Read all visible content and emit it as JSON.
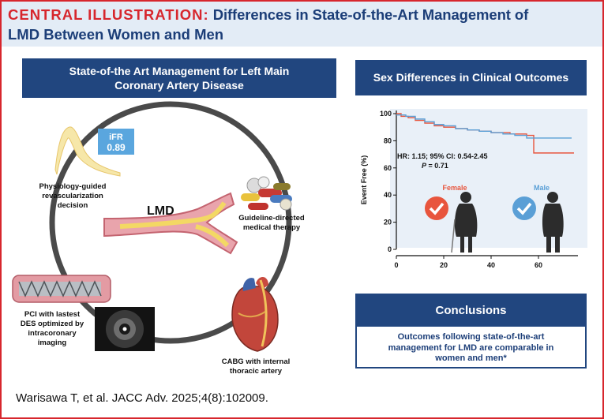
{
  "header": {
    "label": "CENTRAL ILLUSTRATION:",
    "title_line1": "Differences in State-of-the-Art Management of",
    "title_line2": "LMD Between Women and Men"
  },
  "left_panel": {
    "title_line1": "State-of-the Art Management for Left Main",
    "title_line2": "Coronary Artery Disease",
    "ifr_label": "iFR",
    "ifr_value": "0.89",
    "lmd_label": "LMD",
    "physiology_line1": "Physiology-guided",
    "physiology_line2": "revascularization",
    "physiology_line3": "decision",
    "gdmt_line1": "Guideline-directed",
    "gdmt_line2": "medical therapy",
    "pci_line1": "PCI with lastest",
    "pci_line2": "DES optimized by",
    "pci_line3": "intracoronary",
    "pci_line4": "imaging",
    "cabg_line1": "CABG with internal",
    "cabg_line2": "thoracic artery"
  },
  "right_panel": {
    "title": "Sex Differences in Clinical Outcomes",
    "hr_text": "HR: 1.15; 95% CI: 0.54-2.45",
    "p_label": "P",
    "p_value": " = 0.71",
    "female_label": "Female",
    "male_label": "Male"
  },
  "chart_data": {
    "type": "line",
    "ylabel": "Event Free (%)",
    "xlabel": "",
    "xlim": [
      0,
      80
    ],
    "ylim": [
      0,
      100
    ],
    "x_ticks": [
      0,
      20,
      40,
      60
    ],
    "y_ticks": [
      0,
      20,
      40,
      60,
      80,
      100
    ],
    "series": [
      {
        "name": "Female",
        "color": "#e8553d",
        "points": [
          [
            0,
            100
          ],
          [
            2,
            98
          ],
          [
            5,
            97
          ],
          [
            8,
            95
          ],
          [
            12,
            93
          ],
          [
            16,
            91
          ],
          [
            20,
            90
          ],
          [
            25,
            89
          ],
          [
            30,
            88
          ],
          [
            35,
            87
          ],
          [
            40,
            86
          ],
          [
            48,
            85
          ],
          [
            55,
            84
          ],
          [
            58,
            84
          ],
          [
            58,
            71
          ],
          [
            75,
            71
          ]
        ]
      },
      {
        "name": "Male",
        "color": "#5a9fd6",
        "points": [
          [
            0,
            99
          ],
          [
            4,
            98
          ],
          [
            8,
            96
          ],
          [
            12,
            94
          ],
          [
            16,
            92
          ],
          [
            20,
            91
          ],
          [
            25,
            89
          ],
          [
            30,
            88
          ],
          [
            35,
            87
          ],
          [
            40,
            86
          ],
          [
            45,
            85
          ],
          [
            50,
            84
          ],
          [
            55,
            82
          ],
          [
            60,
            82
          ],
          [
            74,
            82
          ]
        ]
      }
    ]
  },
  "conclusions": {
    "title": "Conclusions",
    "line1": "Outcomes following state-of-the-art",
    "line2": "management for LMD are comparable in",
    "line3": "women and men*"
  },
  "citation": "Warisawa T, et al. JACC Adv. 2025;4(8):102009.",
  "colors": {
    "accent_red": "#d7262d",
    "navy": "#21467f",
    "header_bg": "#e3ecf6",
    "chart_bg": "#e9f0f8",
    "female": "#e8553d",
    "male": "#5a9fd6"
  }
}
